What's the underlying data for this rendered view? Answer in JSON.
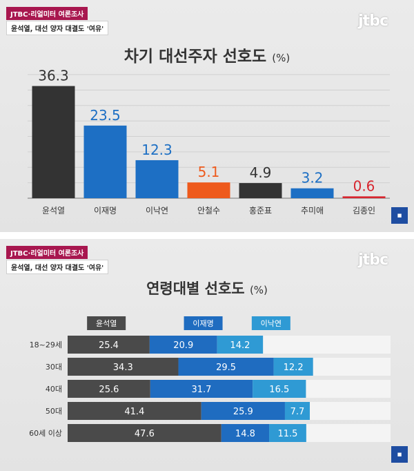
{
  "panel1": {
    "tag": "JTBC·리얼미터 여론조사",
    "subtitle": "윤석열, 대선 양자 대결도 '여유'",
    "logo": "jtbc",
    "unit": "(%)"
  },
  "panel2": {
    "tag": "JTBC·리얼미터 여론조사",
    "subtitle": "윤석열, 대선 양자 대결도 '여유'",
    "logo": "jtbc",
    "unit": "(%)"
  },
  "chart_data": [
    {
      "type": "bar",
      "title": "차기 대선주자 선호도",
      "categories": [
        "윤석열",
        "이재명",
        "이낙연",
        "안철수",
        "홍준표",
        "추미애",
        "김종인"
      ],
      "values": [
        36.3,
        23.5,
        12.3,
        5.1,
        4.9,
        3.2,
        0.6
      ],
      "colors": [
        "#333333",
        "#1d6fc4",
        "#1d6fc4",
        "#ee5a1c",
        "#333333",
        "#1d6fc4",
        "#d7262f"
      ],
      "label_colors": [
        "#333333",
        "#1d6fc4",
        "#1d6fc4",
        "#ee5a1c",
        "#333333",
        "#1d6fc4",
        "#d7262f"
      ],
      "ylim": [
        0,
        40
      ],
      "grid": true
    },
    {
      "type": "bar",
      "orientation": "horizontal",
      "stacked": true,
      "title": "연령대별 선호도",
      "categories": [
        "18~29세",
        "30대",
        "40대",
        "50대",
        "60세 이상"
      ],
      "series": [
        {
          "name": "윤석열",
          "values": [
            25.4,
            34.3,
            25.6,
            41.4,
            47.6
          ],
          "color": "#4a4a4a"
        },
        {
          "name": "이재명",
          "values": [
            20.9,
            29.5,
            31.7,
            25.9,
            14.8
          ],
          "color": "#1f6cc0"
        },
        {
          "name": "이낙연",
          "values": [
            14.2,
            12.2,
            16.5,
            7.7,
            11.5
          ],
          "color": "#2f9ad4"
        }
      ],
      "xlim": [
        0,
        100
      ],
      "remainder_color": "#f4f4f4"
    }
  ]
}
